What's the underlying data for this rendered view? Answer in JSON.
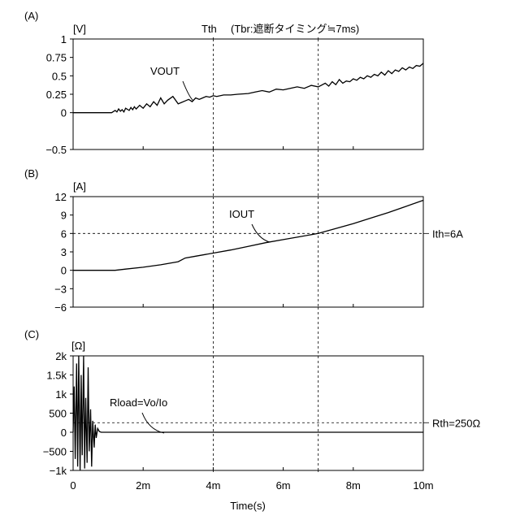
{
  "figure": {
    "annotation_tth": "Tth",
    "annotation_tbr": "(Tbr:遮断タイミング≒7ms)",
    "xlabel": "Time(s)",
    "x_tick_labels": [
      "0",
      "2m",
      "4m",
      "6m",
      "8m",
      "10m"
    ]
  },
  "chart_data": [
    {
      "type": "line",
      "panel_label": "(A)",
      "unit": "[V]",
      "xlim": [
        0,
        0.01
      ],
      "ylim": [
        -0.5,
        1
      ],
      "y_ticks": [
        1,
        0.75,
        0.5,
        0.25,
        0,
        -0.5
      ],
      "y_tick_labels": [
        "1",
        "0.75",
        "0.5",
        "0.25",
        "0",
        "−0.5"
      ],
      "grid": false,
      "vlines": [
        0.004,
        0.007
      ],
      "series": [
        {
          "name": "VOUT",
          "x": [
            0,
            0.0011,
            0.0012,
            0.00125,
            0.0013,
            0.00135,
            0.0014,
            0.00145,
            0.0015,
            0.0016,
            0.00165,
            0.0017,
            0.00175,
            0.0018,
            0.0019,
            0.002,
            0.0021,
            0.0022,
            0.0023,
            0.0024,
            0.0025,
            0.0026,
            0.0027,
            0.00285,
            0.003,
            0.0031,
            0.0032,
            0.0033,
            0.0034,
            0.0035,
            0.0036,
            0.0037,
            0.0038,
            0.0039,
            0.004,
            0.0041,
            0.0043,
            0.0045,
            0.0047,
            0.005,
            0.0052,
            0.0054,
            0.0056,
            0.0058,
            0.006,
            0.0062,
            0.0064,
            0.0066,
            0.0068,
            0.007,
            0.0072,
            0.0073,
            0.0074,
            0.0075,
            0.0076,
            0.0077,
            0.0078,
            0.0079,
            0.008,
            0.0081,
            0.0082,
            0.0083,
            0.0084,
            0.0085,
            0.0086,
            0.0087,
            0.0088,
            0.0089,
            0.009,
            0.0091,
            0.0092,
            0.0093,
            0.0094,
            0.0095,
            0.0096,
            0.0097,
            0.0098,
            0.0099,
            0.01
          ],
          "y": [
            0,
            0,
            0.03,
            0.01,
            0.05,
            0.02,
            0.04,
            0.01,
            0.06,
            0.03,
            0.07,
            0.04,
            0.08,
            0.05,
            0.1,
            0.06,
            0.12,
            0.08,
            0.15,
            0.1,
            0.2,
            0.12,
            0.17,
            0.22,
            0.12,
            0.14,
            0.16,
            0.18,
            0.15,
            0.2,
            0.18,
            0.2,
            0.22,
            0.21,
            0.23,
            0.22,
            0.24,
            0.24,
            0.25,
            0.26,
            0.28,
            0.3,
            0.28,
            0.32,
            0.31,
            0.33,
            0.35,
            0.33,
            0.37,
            0.35,
            0.4,
            0.36,
            0.42,
            0.38,
            0.45,
            0.4,
            0.43,
            0.42,
            0.46,
            0.44,
            0.48,
            0.46,
            0.5,
            0.48,
            0.52,
            0.5,
            0.55,
            0.51,
            0.57,
            0.53,
            0.58,
            0.56,
            0.61,
            0.58,
            0.62,
            0.6,
            0.64,
            0.63,
            0.67
          ]
        }
      ]
    },
    {
      "type": "line",
      "panel_label": "(B)",
      "unit": "[A]",
      "xlim": [
        0,
        0.01
      ],
      "ylim": [
        -6,
        12
      ],
      "y_ticks": [
        12,
        9,
        6,
        3,
        0,
        -3,
        -6
      ],
      "y_tick_labels": [
        "12",
        "9",
        "6",
        "3",
        "0",
        "−3",
        "−6"
      ],
      "grid": false,
      "vlines": [
        0.004,
        0.007
      ],
      "hline": 6,
      "hline_label": "Ith=6A",
      "series": [
        {
          "name": "IOUT",
          "x": [
            0,
            0.0012,
            0.0015,
            0.002,
            0.0025,
            0.003,
            0.0032,
            0.0035,
            0.004,
            0.0045,
            0.005,
            0.0055,
            0.006,
            0.0065,
            0.007,
            0.0075,
            0.008,
            0.0085,
            0.009,
            0.0095,
            0.01
          ],
          "y": [
            0,
            0,
            0.2,
            0.5,
            0.9,
            1.4,
            2.0,
            2.3,
            2.8,
            3.3,
            3.9,
            4.5,
            5.0,
            5.5,
            6.0,
            6.8,
            7.6,
            8.5,
            9.4,
            10.4,
            11.4
          ]
        }
      ]
    },
    {
      "type": "line",
      "panel_label": "(C)",
      "unit": "[Ω]",
      "xlim": [
        0,
        0.01
      ],
      "ylim": [
        -1000,
        2000
      ],
      "y_ticks": [
        2000,
        1500,
        1000,
        500,
        0,
        -500,
        -1000
      ],
      "y_tick_labels": [
        "2k",
        "1.5k",
        "1k",
        "500",
        "0",
        "−500",
        "−1k"
      ],
      "grid": false,
      "vlines": [
        0.004,
        0.007
      ],
      "hline": 250,
      "hline_label": "Rth=250Ω",
      "series": [
        {
          "name": "Rload=Vo/Io",
          "x": [
            0,
            3e-05,
            6e-05,
            0.0001,
            0.00013,
            0.00016,
            0.0002,
            0.00023,
            0.00026,
            0.0003,
            0.00033,
            0.00036,
            0.0004,
            0.00043,
            0.00046,
            0.0005,
            0.00053,
            0.00056,
            0.0006,
            0.00063,
            0.00066,
            0.0007,
            0.00075,
            0.0008,
            0.001,
            0.002,
            0.003,
            0.004,
            0.006,
            0.008,
            0.01
          ],
          "y": [
            0,
            1200,
            -700,
            1800,
            -900,
            2000,
            -1000,
            1500,
            -600,
            2000,
            -950,
            900,
            -800,
            1700,
            -500,
            600,
            -900,
            300,
            -400,
            200,
            -150,
            100,
            20,
            0,
            0,
            0,
            0,
            0,
            0,
            0,
            0
          ]
        }
      ]
    }
  ]
}
